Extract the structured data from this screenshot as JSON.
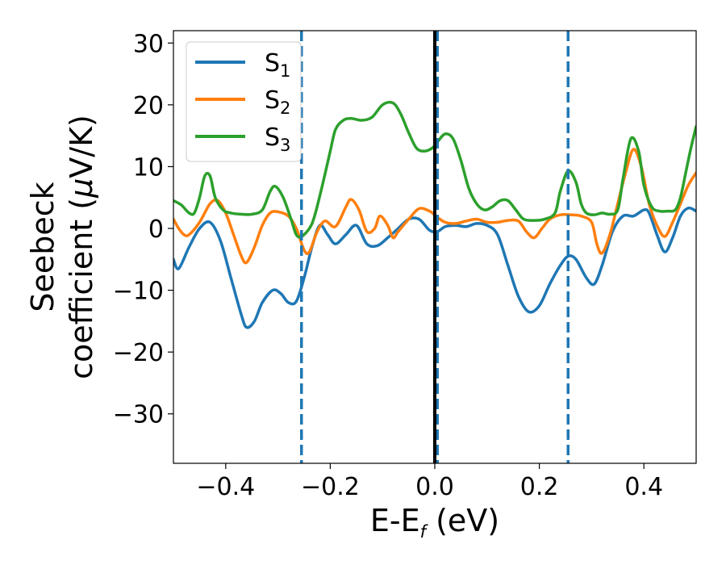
{
  "chart_data": {
    "type": "line",
    "title": "",
    "xlabel": {
      "main": "E-E",
      "sub": "f",
      "unit": " (eV)"
    },
    "ylabel": {
      "line1": "Seebeck",
      "line2_text": "coefficient  (",
      "line2_mu": "μ",
      "line2_unit": "V/K)"
    },
    "xlim": [
      -0.5,
      0.5
    ],
    "ylim": [
      -38,
      32
    ],
    "xticks": [
      {
        "value": -0.4,
        "label": "−0.4"
      },
      {
        "value": -0.2,
        "label": "−0.2"
      },
      {
        "value": 0.0,
        "label": "0.0"
      },
      {
        "value": 0.2,
        "label": "0.2"
      },
      {
        "value": 0.4,
        "label": "0.4"
      }
    ],
    "yticks": [
      {
        "value": 30,
        "label": "30"
      },
      {
        "value": 20,
        "label": "20"
      },
      {
        "value": 10,
        "label": "10"
      },
      {
        "value": 0,
        "label": "0"
      },
      {
        "value": -10,
        "label": "−10"
      },
      {
        "value": -20,
        "label": "−20"
      },
      {
        "value": -30,
        "label": "−30"
      }
    ],
    "grid": false,
    "legend_position": "top-left",
    "vertical_lines": [
      {
        "x": -0.255,
        "style": "dashed",
        "color": "#1f77b4"
      },
      {
        "x": 0.005,
        "style": "dashed",
        "color": "#1f77b4"
      },
      {
        "x": 0.255,
        "style": "dashed",
        "color": "#1f77b4"
      },
      {
        "x": 0.0,
        "style": "solid",
        "color": "#000000"
      }
    ],
    "series": [
      {
        "name": "S",
        "sub": "1",
        "color": "#1f77b4",
        "points": [
          [
            -0.5,
            -5
          ],
          [
            -0.49,
            -6.5
          ],
          [
            -0.47,
            -3
          ],
          [
            -0.45,
            0
          ],
          [
            -0.43,
            1
          ],
          [
            -0.41,
            -2
          ],
          [
            -0.39,
            -8
          ],
          [
            -0.37,
            -14
          ],
          [
            -0.36,
            -16
          ],
          [
            -0.345,
            -15
          ],
          [
            -0.33,
            -12
          ],
          [
            -0.31,
            -10
          ],
          [
            -0.295,
            -10.5
          ],
          [
            -0.28,
            -12
          ],
          [
            -0.265,
            -11.8
          ],
          [
            -0.25,
            -8
          ],
          [
            -0.235,
            -3
          ],
          [
            -0.22,
            0.5
          ],
          [
            -0.205,
            -1
          ],
          [
            -0.19,
            -2.5
          ],
          [
            -0.17,
            -1
          ],
          [
            -0.15,
            0.5
          ],
          [
            -0.13,
            -2.5
          ],
          [
            -0.11,
            -2.8
          ],
          [
            -0.09,
            -1.5
          ],
          [
            -0.07,
            0
          ],
          [
            -0.05,
            1.5
          ],
          [
            -0.03,
            1.5
          ],
          [
            -0.01,
            -0.3
          ],
          [
            0.005,
            -0.5
          ],
          [
            0.02,
            0.3
          ],
          [
            0.04,
            0.5
          ],
          [
            0.06,
            0.3
          ],
          [
            0.08,
            0.8
          ],
          [
            0.1,
            0.5
          ],
          [
            0.12,
            -1
          ],
          [
            0.14,
            -6
          ],
          [
            0.16,
            -11
          ],
          [
            0.18,
            -13.5
          ],
          [
            0.2,
            -12.5
          ],
          [
            0.22,
            -9
          ],
          [
            0.24,
            -6
          ],
          [
            0.255,
            -4.5
          ],
          [
            0.27,
            -5
          ],
          [
            0.29,
            -8
          ],
          [
            0.305,
            -9
          ],
          [
            0.32,
            -6
          ],
          [
            0.34,
            -0.5
          ],
          [
            0.36,
            2
          ],
          [
            0.38,
            2
          ],
          [
            0.4,
            3
          ],
          [
            0.41,
            2.5
          ],
          [
            0.425,
            -1
          ],
          [
            0.44,
            -3.8
          ],
          [
            0.455,
            -1.5
          ],
          [
            0.47,
            2
          ],
          [
            0.485,
            3.3
          ],
          [
            0.5,
            2.8
          ]
        ]
      },
      {
        "name": "S",
        "sub": "2",
        "color": "#ff7f0e",
        "points": [
          [
            -0.5,
            1.5
          ],
          [
            -0.49,
            0
          ],
          [
            -0.48,
            -1
          ],
          [
            -0.47,
            -1
          ],
          [
            -0.45,
            1
          ],
          [
            -0.43,
            4
          ],
          [
            -0.415,
            4.5
          ],
          [
            -0.4,
            2.5
          ],
          [
            -0.385,
            -1
          ],
          [
            -0.37,
            -4.5
          ],
          [
            -0.36,
            -5.5
          ],
          [
            -0.345,
            -3
          ],
          [
            -0.33,
            0.5
          ],
          [
            -0.315,
            2.5
          ],
          [
            -0.3,
            2.7
          ],
          [
            -0.28,
            2
          ],
          [
            -0.265,
            0
          ],
          [
            -0.25,
            -3.5
          ],
          [
            -0.24,
            -3.8
          ],
          [
            -0.225,
            -0.5
          ],
          [
            -0.21,
            1.2
          ],
          [
            -0.19,
            0.3
          ],
          [
            -0.17,
            3.5
          ],
          [
            -0.16,
            4.7
          ],
          [
            -0.145,
            3
          ],
          [
            -0.13,
            -0.5
          ],
          [
            -0.115,
            0
          ],
          [
            -0.105,
            2
          ],
          [
            -0.09,
            0.5
          ],
          [
            -0.08,
            -1.5
          ],
          [
            -0.07,
            -0.5
          ],
          [
            -0.05,
            1.5
          ],
          [
            -0.03,
            3.2
          ],
          [
            -0.01,
            2.8
          ],
          [
            0.005,
            1.8
          ],
          [
            0.02,
            1
          ],
          [
            0.04,
            0.8
          ],
          [
            0.06,
            1.2
          ],
          [
            0.08,
            1.5
          ],
          [
            0.1,
            1
          ],
          [
            0.12,
            1
          ],
          [
            0.14,
            1.3
          ],
          [
            0.16,
            1.2
          ],
          [
            0.175,
            -0.5
          ],
          [
            0.19,
            -1.5
          ],
          [
            0.205,
            0
          ],
          [
            0.22,
            1.5
          ],
          [
            0.24,
            2.2
          ],
          [
            0.26,
            2.2
          ],
          [
            0.28,
            2
          ],
          [
            0.3,
            1
          ],
          [
            0.31,
            -2.5
          ],
          [
            0.32,
            -4
          ],
          [
            0.335,
            -1
          ],
          [
            0.35,
            4
          ],
          [
            0.365,
            9
          ],
          [
            0.38,
            12.8
          ],
          [
            0.395,
            10
          ],
          [
            0.41,
            4
          ],
          [
            0.425,
            0.5
          ],
          [
            0.44,
            -1.3
          ],
          [
            0.455,
            1
          ],
          [
            0.47,
            4
          ],
          [
            0.485,
            7
          ],
          [
            0.5,
            9
          ]
        ]
      },
      {
        "name": "S",
        "sub": "3",
        "color": "#2ca02c",
        "points": [
          [
            -0.5,
            4.5
          ],
          [
            -0.485,
            3.8
          ],
          [
            -0.47,
            2.5
          ],
          [
            -0.46,
            2.5
          ],
          [
            -0.45,
            5
          ],
          [
            -0.44,
            8.5
          ],
          [
            -0.43,
            8.5
          ],
          [
            -0.42,
            5
          ],
          [
            -0.405,
            3
          ],
          [
            -0.39,
            2.5
          ],
          [
            -0.37,
            2.3
          ],
          [
            -0.35,
            2.3
          ],
          [
            -0.33,
            3
          ],
          [
            -0.315,
            6
          ],
          [
            -0.305,
            6.8
          ],
          [
            -0.29,
            5
          ],
          [
            -0.275,
            1.5
          ],
          [
            -0.265,
            -1
          ],
          [
            -0.255,
            -1.3
          ],
          [
            -0.24,
            0
          ],
          [
            -0.23,
            2
          ],
          [
            -0.215,
            7
          ],
          [
            -0.2,
            12.5
          ],
          [
            -0.19,
            16
          ],
          [
            -0.175,
            17.5
          ],
          [
            -0.16,
            17.8
          ],
          [
            -0.14,
            17.5
          ],
          [
            -0.12,
            18
          ],
          [
            -0.1,
            20
          ],
          [
            -0.08,
            20.3
          ],
          [
            -0.065,
            18.5
          ],
          [
            -0.05,
            15.5
          ],
          [
            -0.035,
            13
          ],
          [
            -0.02,
            12.5
          ],
          [
            -0.005,
            13
          ],
          [
            0.005,
            14
          ],
          [
            0.02,
            15.3
          ],
          [
            0.035,
            14.5
          ],
          [
            0.05,
            11
          ],
          [
            0.065,
            6.5
          ],
          [
            0.08,
            4
          ],
          [
            0.095,
            3
          ],
          [
            0.11,
            3.5
          ],
          [
            0.125,
            4.5
          ],
          [
            0.14,
            4.5
          ],
          [
            0.155,
            3
          ],
          [
            0.17,
            1.5
          ],
          [
            0.19,
            1.3
          ],
          [
            0.21,
            1.5
          ],
          [
            0.23,
            2.5
          ],
          [
            0.24,
            6
          ],
          [
            0.255,
            9.3
          ],
          [
            0.27,
            7.5
          ],
          [
            0.28,
            4
          ],
          [
            0.29,
            2.5
          ],
          [
            0.305,
            2.2
          ],
          [
            0.32,
            2.5
          ],
          [
            0.335,
            2.3
          ],
          [
            0.35,
            3
          ],
          [
            0.36,
            8
          ],
          [
            0.375,
            14.5
          ],
          [
            0.39,
            12.5
          ],
          [
            0.4,
            7
          ],
          [
            0.415,
            3.5
          ],
          [
            0.43,
            2.8
          ],
          [
            0.445,
            2.8
          ],
          [
            0.46,
            3
          ],
          [
            0.47,
            5
          ],
          [
            0.48,
            9
          ],
          [
            0.49,
            13
          ],
          [
            0.5,
            16.5
          ]
        ]
      }
    ]
  }
}
